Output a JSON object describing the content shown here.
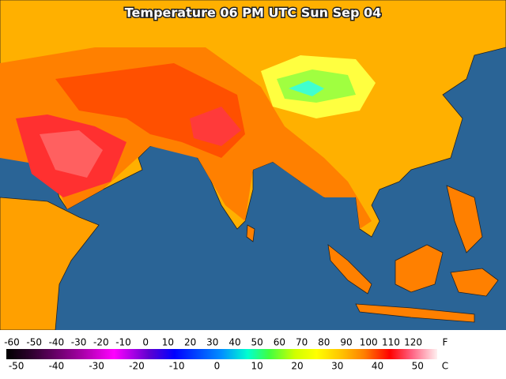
{
  "title": "Temperature 06 PM UTC Sun Sep 04",
  "legend": {
    "f_unit": "F",
    "c_unit": "C",
    "f_ticks": [
      -60,
      -50,
      -40,
      -30,
      -20,
      -10,
      0,
      10,
      20,
      30,
      40,
      50,
      60,
      70,
      80,
      90,
      100,
      110,
      120
    ],
    "c_ticks": [
      -50,
      -40,
      -30,
      -20,
      -10,
      0,
      10,
      20,
      30,
      40,
      50
    ]
  }
}
